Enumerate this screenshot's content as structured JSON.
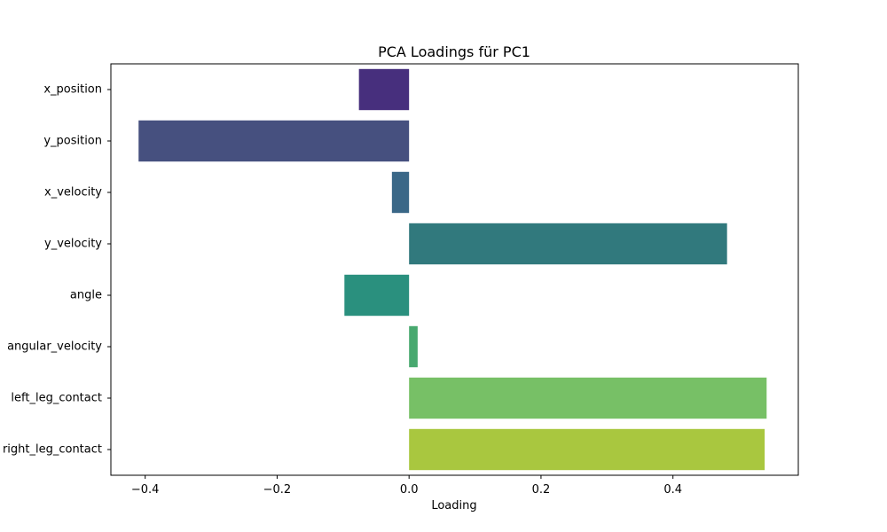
{
  "chart_data": {
    "type": "bar",
    "orientation": "horizontal",
    "title": "PCA Loadings für PC1",
    "xlabel": "Loading",
    "ylabel": "",
    "xlim": [
      -0.452,
      0.59
    ],
    "xticks": [
      -0.4,
      -0.2,
      0.0,
      0.2,
      0.4
    ],
    "xtick_labels": [
      "−0.4",
      "−0.2",
      "0.0",
      "0.2",
      "0.4"
    ],
    "grid": false,
    "categories": [
      "x_position",
      "y_position",
      "x_velocity",
      "y_velocity",
      "angle",
      "angular_velocity",
      "left_leg_contact",
      "right_leg_contact"
    ],
    "values": [
      -0.076,
      -0.41,
      -0.026,
      0.482,
      -0.098,
      0.013,
      0.542,
      0.539
    ],
    "colors": [
      "#472F7D",
      "#46507F",
      "#3A6787",
      "#31797D",
      "#2A907E",
      "#48A96F",
      "#77C066",
      "#A9C73F"
    ]
  }
}
